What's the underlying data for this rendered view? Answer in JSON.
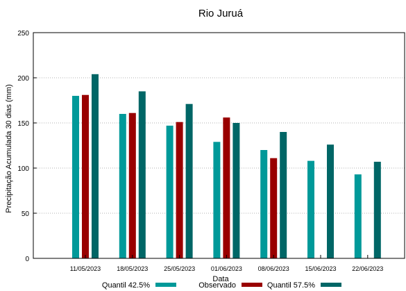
{
  "chart_data": {
    "type": "bar",
    "title": "Rio Juruá",
    "xlabel": "Data",
    "ylabel": "Precipitação Acumulada 30 dias (mm)",
    "ylim": [
      0,
      250
    ],
    "yticks": [
      "0",
      "50",
      "100",
      "150",
      "200",
      "250"
    ],
    "grid": true,
    "legend_position": "bottom",
    "categories": [
      "11/05/2023",
      "18/05/2023",
      "25/05/2023",
      "01/06/2023",
      "08/06/2023",
      "15/06/2023",
      "22/06/2023"
    ],
    "series": [
      {
        "name": "Quantil 42.5%",
        "color": "#009999",
        "values": [
          180,
          160,
          147,
          129,
          120,
          108,
          93
        ]
      },
      {
        "name": "Observado",
        "color": "#990000",
        "values": [
          181,
          161,
          151,
          156,
          111,
          null,
          null
        ]
      },
      {
        "name": "Quantil 57.5%",
        "color": "#006666",
        "values": [
          204,
          185,
          171,
          150,
          140,
          126,
          107
        ]
      }
    ]
  }
}
